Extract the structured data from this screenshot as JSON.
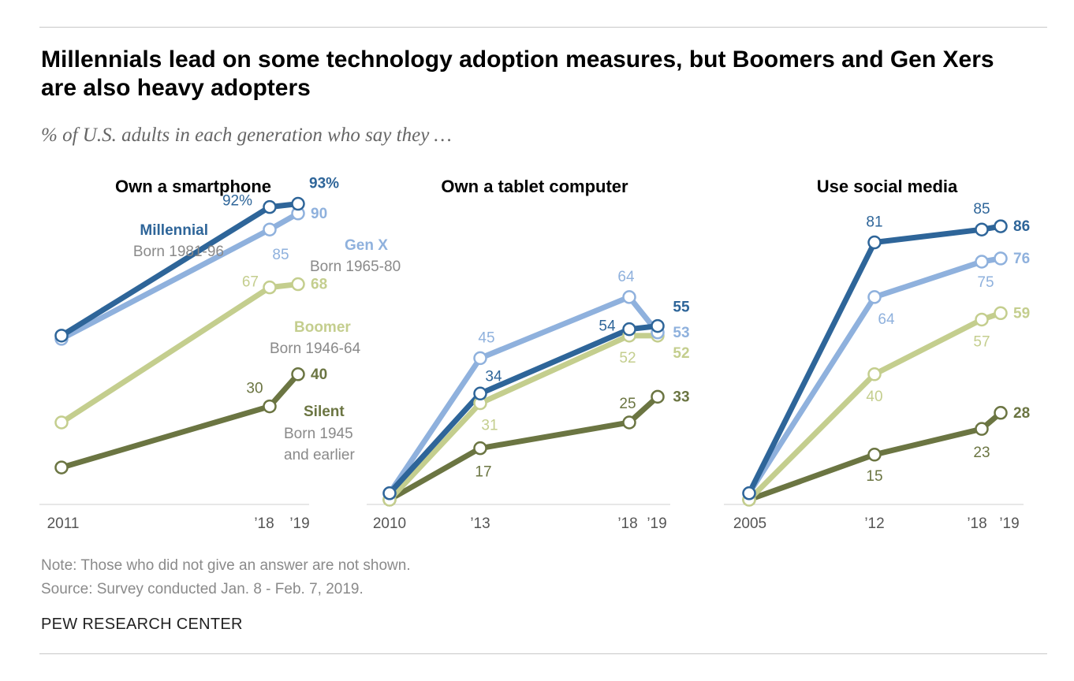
{
  "title": "Millennials lead on some technology adoption measures, but Boomers and Gen Xers are also heavy adopters",
  "subtitle": "% of U.S. adults in each generation who say they …",
  "note": "Note: Those who did not give an answer are not shown.",
  "source": "Source: Survey conducted Jan. 8 - Feb. 7, 2019.",
  "brand": "PEW RESEARCH CENTER",
  "colors": {
    "millennial": "#2e6599",
    "genx": "#8fb1dd",
    "boomer": "#c4ce8e",
    "silent": "#6b7542"
  },
  "generations": {
    "millennial": {
      "name": "Millennial",
      "born": "Born 1981-96"
    },
    "genx": {
      "name": "Gen X",
      "born": "Born 1965-80"
    },
    "boomer": {
      "name": "Boomer",
      "born": "Born 1946-64"
    },
    "silent": {
      "name": "Silent",
      "born_line1": "Born 1945",
      "born_line2": "and earlier"
    }
  },
  "chart_data": [
    {
      "type": "line",
      "title": "Own a smartphone",
      "x": [
        2011,
        2018,
        2019
      ],
      "x_tick_labels": [
        "2011",
        "’18",
        "’19"
      ],
      "series": [
        {
          "name": "Millennial",
          "key": "millennial",
          "values": [
            52,
            92,
            93
          ],
          "labels": [
            "",
            "92%",
            "93%"
          ]
        },
        {
          "name": "Gen X",
          "key": "genx",
          "values": [
            51,
            85,
            90
          ],
          "labels": [
            "",
            "85",
            "90"
          ]
        },
        {
          "name": "Boomer",
          "key": "boomer",
          "values": [
            25,
            67,
            68
          ],
          "labels": [
            "",
            "67",
            "68"
          ]
        },
        {
          "name": "Silent",
          "key": "silent",
          "values": [
            11,
            30,
            40
          ],
          "labels": [
            "",
            "30",
            "40"
          ]
        }
      ]
    },
    {
      "type": "line",
      "title": "Own a tablet computer",
      "x": [
        2010,
        2013,
        2018,
        2019
      ],
      "x_tick_labels": [
        "2010",
        "’13",
        "’18",
        "’19"
      ],
      "series": [
        {
          "name": "Millennial",
          "key": "millennial",
          "values": [
            3,
            34,
            54,
            55
          ],
          "labels": [
            "",
            "34",
            "54",
            "55"
          ]
        },
        {
          "name": "Gen X",
          "key": "genx",
          "values": [
            3,
            45,
            64,
            53
          ],
          "labels": [
            "",
            "45",
            "64",
            "53"
          ]
        },
        {
          "name": "Boomer",
          "key": "boomer",
          "values": [
            1,
            31,
            52,
            52
          ],
          "labels": [
            "",
            "31",
            "52",
            "52"
          ]
        },
        {
          "name": "Silent",
          "key": "silent",
          "values": [
            1,
            17,
            25,
            33
          ],
          "labels": [
            "",
            "17",
            "25",
            "33"
          ]
        }
      ]
    },
    {
      "type": "line",
      "title": "Use social media",
      "x": [
        2005,
        2012,
        2018,
        2019
      ],
      "x_tick_labels": [
        "2005",
        "’12",
        "’18",
        "’19"
      ],
      "series": [
        {
          "name": "Millennial",
          "key": "millennial",
          "values": [
            3,
            81,
            85,
            86
          ],
          "labels": [
            "",
            "81",
            "85",
            "86"
          ]
        },
        {
          "name": "Gen X",
          "key": "genx",
          "values": [
            3,
            64,
            75,
            76
          ],
          "labels": [
            "",
            "64",
            "75",
            "76"
          ]
        },
        {
          "name": "Boomer",
          "key": "boomer",
          "values": [
            1,
            40,
            57,
            59
          ],
          "labels": [
            "",
            "40",
            "57",
            "59"
          ]
        },
        {
          "name": "Silent",
          "key": "silent",
          "values": [
            1,
            15,
            23,
            28
          ],
          "labels": [
            "",
            "15",
            "23",
            "28"
          ]
        }
      ]
    }
  ]
}
